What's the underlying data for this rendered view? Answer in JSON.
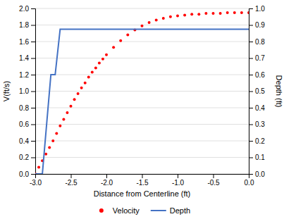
{
  "chart_data": {
    "type": "scatter",
    "xlabel": "Distance from Centerline (ft)",
    "ylabel": "V(ft/s)",
    "y2label": "Depth (ft)",
    "xlim": [
      -3.0,
      0.0
    ],
    "ylim": [
      0.0,
      2.0
    ],
    "y2lim": [
      0.0,
      1.0
    ],
    "xticks": [
      {
        "value": -3.0,
        "label": "-3.0"
      },
      -2.5,
      {
        "value": -2.0,
        "label": "-2.0"
      },
      -1.5,
      {
        "value": -1.0,
        "label": "-1.0"
      },
      -0.5,
      {
        "value": 0.0,
        "label": "0.0"
      }
    ],
    "yticks": [
      {
        "value": 0.0,
        "label": "0.0"
      },
      0.2,
      0.4,
      0.6,
      0.8,
      {
        "value": 1.0,
        "label": "1.0"
      },
      1.2,
      1.4,
      1.6,
      1.8,
      {
        "value": 2.0,
        "label": "2.0"
      }
    ],
    "y2ticks": [
      {
        "value": 0.0,
        "label": "0.0"
      },
      0.1,
      0.2,
      0.3,
      0.4,
      0.5,
      0.6,
      0.7,
      0.8,
      0.9,
      {
        "value": 1.0,
        "label": "1.0"
      }
    ],
    "grid": "y",
    "legend": "bottom",
    "series": [
      {
        "name": "Velocity",
        "type": "scatter",
        "marker": "circle",
        "color": "#ff0000",
        "x": [
          -3.0,
          -2.95,
          -2.9,
          -2.85,
          -2.8,
          -2.75,
          -2.7,
          -2.65,
          -2.6,
          -2.55,
          -2.5,
          -2.45,
          -2.4,
          -2.35,
          -2.3,
          -2.25,
          -2.2,
          -2.15,
          -2.1,
          -2.05,
          -2.0,
          -1.9,
          -1.8,
          -1.7,
          -1.6,
          -1.5,
          -1.4,
          -1.3,
          -1.2,
          -1.1,
          -1.0,
          -0.9,
          -0.8,
          -0.7,
          -0.6,
          -0.5,
          -0.4,
          -0.3,
          -0.2,
          -0.1,
          0.0
        ],
        "values": [
          0.0,
          0.08,
          0.16,
          0.24,
          0.32,
          0.4,
          0.49,
          0.58,
          0.66,
          0.74,
          0.82,
          0.9,
          0.97,
          1.04,
          1.1,
          1.17,
          1.23,
          1.28,
          1.34,
          1.39,
          1.44,
          1.53,
          1.61,
          1.68,
          1.74,
          1.79,
          1.83,
          1.86,
          1.88,
          1.9,
          1.91,
          1.92,
          1.93,
          1.93,
          1.94,
          1.94,
          1.94,
          1.95,
          1.95,
          1.95,
          1.95
        ]
      },
      {
        "name": "Depth",
        "type": "line",
        "line_style": "solid",
        "axis": "y2",
        "color": "#4472c4",
        "x": [
          -3.0,
          -2.9,
          -2.78,
          -2.72,
          -2.65,
          0.0
        ],
        "values": [
          0.0,
          0.0,
          0.6,
          0.6,
          0.875,
          0.875
        ]
      }
    ]
  }
}
